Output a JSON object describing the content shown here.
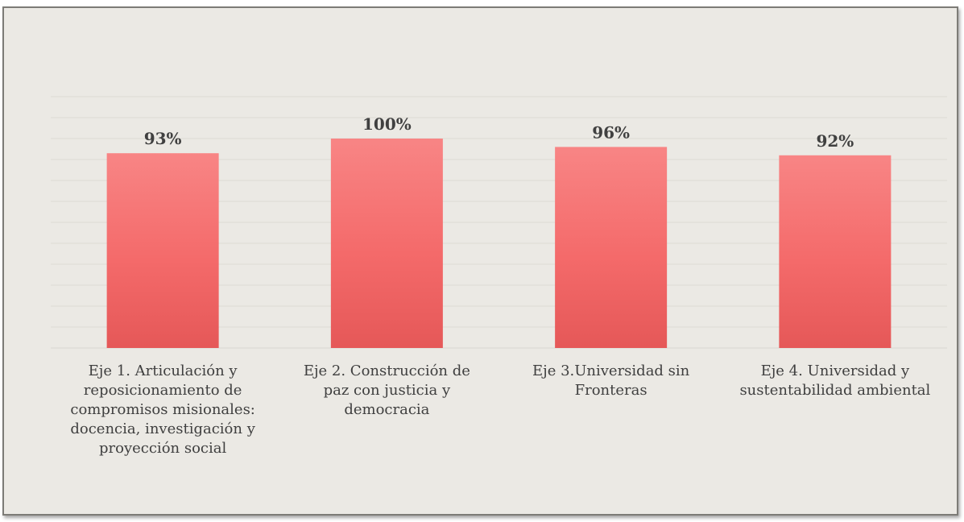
{
  "chart_data": {
    "type": "bar",
    "categories": [
      "Eje 1. Articulación y reposicionamiento de compromisos misionales: docencia, investigación y proyección social",
      "Eje 2. Construcción de paz con justicia y democracia",
      "Eje 3.Universidad sin Fronteras",
      "Eje 4. Universidad y sustentabilidad ambiental"
    ],
    "values": [
      93,
      100,
      96,
      92
    ],
    "data_labels": [
      "93%",
      "100%",
      "96%",
      "92%"
    ],
    "ylim": [
      0,
      120
    ],
    "grid": true,
    "legend": "none",
    "colors": {
      "bar_top": "#f88585",
      "bar_mid": "#f46a6a",
      "bar_bottom": "#e55858",
      "background": "#ebe9e4",
      "grid": "#dcdad5",
      "label": "#404040"
    }
  }
}
